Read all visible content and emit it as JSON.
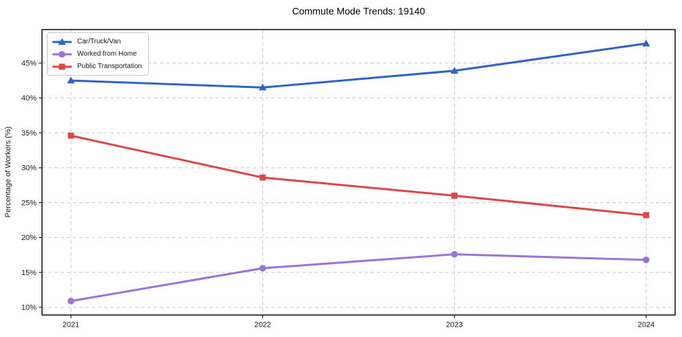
{
  "window": {
    "background": "#ffffff"
  },
  "chart_data": {
    "type": "line",
    "title": "Commute Mode Trends: 19140",
    "xlabel": "",
    "ylabel": "Percentage of Workers (%)",
    "x": [
      2021,
      2022,
      2023,
      2024
    ],
    "x_tick_labels": [
      "2021",
      "2022",
      "2023",
      "2024"
    ],
    "y_ticks": [
      10,
      15,
      20,
      25,
      30,
      35,
      40,
      45
    ],
    "y_tick_labels": [
      "10%",
      "15%",
      "20%",
      "25%",
      "30%",
      "35%",
      "40%",
      "45%"
    ],
    "ylim": [
      8.9,
      49.8
    ],
    "grid": true,
    "grid_style": "dashed",
    "legend_position": "upper-left",
    "series": [
      {
        "name": "Car/Truck/Van",
        "color": "#2d63c8",
        "marker": "triangle",
        "values": [
          42.5,
          41.5,
          43.9,
          47.8
        ]
      },
      {
        "name": "Worked from Home",
        "color": "#9a73d9",
        "marker": "circle",
        "values": [
          10.9,
          15.6,
          17.6,
          16.8
        ]
      },
      {
        "name": "Public Transportation",
        "color": "#e04545",
        "marker": "square",
        "values": [
          34.6,
          28.6,
          26.0,
          23.2
        ]
      }
    ]
  }
}
